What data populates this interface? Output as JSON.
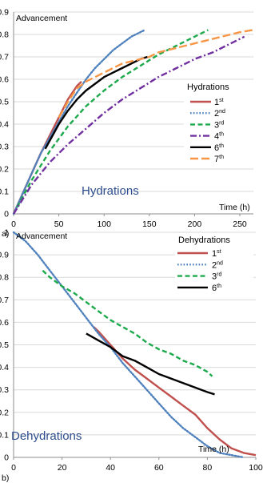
{
  "chart_data": [
    {
      "panel_label": "a)",
      "type": "line",
      "ylabel": "Advancement",
      "xlabel": "Time (h)",
      "annotation": "Hydrations",
      "legend_title": "Hydrations",
      "legend_position": "right",
      "xlim": [
        0,
        265
      ],
      "ylim": [
        0,
        0.9
      ],
      "x_ticks": [
        "0",
        "50",
        "100",
        "150",
        "200",
        "250"
      ],
      "y_ticks": [
        "0",
        "0.1",
        "0.2",
        "0.3",
        "0.4",
        "0.5",
        "0.6",
        "0.7",
        "0.8",
        "0.9"
      ],
      "grid": "horizontal",
      "series": [
        {
          "name": "1",
          "sup": "st",
          "color": "#c0504d",
          "dash": "solid",
          "x": [
            0,
            10,
            20,
            30,
            40,
            50,
            60,
            70,
            75
          ],
          "y": [
            0,
            0.09,
            0.18,
            0.27,
            0.35,
            0.43,
            0.51,
            0.57,
            0.59
          ]
        },
        {
          "name": "2",
          "sup": "nd",
          "color": "#4f81bd",
          "dash": "dot",
          "x": [
            0,
            10,
            20,
            30,
            40,
            50,
            60,
            70,
            80,
            90,
            100,
            110,
            120,
            130,
            140,
            145
          ],
          "y": [
            0,
            0.09,
            0.18,
            0.27,
            0.34,
            0.41,
            0.48,
            0.54,
            0.6,
            0.65,
            0.69,
            0.73,
            0.76,
            0.79,
            0.81,
            0.82
          ]
        },
        {
          "name": "3",
          "sup": "rd",
          "color": "#1daa4c",
          "dash": "dash",
          "x": [
            0,
            20,
            40,
            60,
            80,
            100,
            120,
            140,
            160,
            180,
            200,
            215
          ],
          "y": [
            0,
            0.15,
            0.28,
            0.39,
            0.48,
            0.55,
            0.61,
            0.66,
            0.71,
            0.75,
            0.79,
            0.82
          ]
        },
        {
          "name": "4",
          "sup": "th",
          "color": "#7030a0",
          "dash": "dashdot",
          "x": [
            0,
            20,
            40,
            60,
            80,
            100,
            120,
            140,
            160,
            180,
            200,
            220,
            240,
            255
          ],
          "y": [
            0,
            0.13,
            0.23,
            0.31,
            0.38,
            0.45,
            0.51,
            0.56,
            0.61,
            0.65,
            0.69,
            0.72,
            0.76,
            0.79
          ]
        },
        {
          "name": "6",
          "sup": "th",
          "color": "#000000",
          "dash": "solid",
          "x": [
            35,
            50,
            60,
            70,
            80,
            90,
            100,
            110,
            120,
            130,
            140,
            148
          ],
          "y": [
            0.29,
            0.4,
            0.46,
            0.51,
            0.55,
            0.58,
            0.61,
            0.63,
            0.65,
            0.67,
            0.69,
            0.7
          ]
        },
        {
          "name": "7",
          "sup": "th",
          "color": "#f79646",
          "dash": "longdash",
          "x": [
            50,
            60,
            70,
            80,
            90,
            100,
            110,
            120,
            130,
            140,
            150,
            160,
            170,
            180,
            190,
            200,
            210,
            220,
            230,
            240,
            250,
            265
          ],
          "y": [
            0.43,
            0.5,
            0.56,
            0.59,
            0.61,
            0.63,
            0.65,
            0.67,
            0.68,
            0.69,
            0.7,
            0.72,
            0.73,
            0.74,
            0.75,
            0.76,
            0.77,
            0.78,
            0.79,
            0.8,
            0.81,
            0.82
          ]
        }
      ]
    },
    {
      "panel_label": "b)",
      "type": "line",
      "ylabel": "Advancement",
      "xlabel": "Time (h)",
      "annotation": "Dehydrations",
      "legend_title": "Dehydrations",
      "legend_position": "top-right",
      "xlim": [
        0,
        100
      ],
      "ylim": [
        0,
        1
      ],
      "x_ticks": [
        "0",
        "20",
        "40",
        "60",
        "80",
        "100"
      ],
      "y_ticks": [
        "0",
        "0.1",
        "0.2",
        "0.3",
        "0.4",
        "0.5",
        "0.6",
        "0.7",
        "0.8",
        "0.9",
        "1"
      ],
      "grid": "horizontal",
      "series": [
        {
          "name": "1",
          "sup": "st",
          "color": "#c0504d",
          "dash": "solid",
          "x": [
            33,
            35,
            40,
            45,
            50,
            55,
            60,
            65,
            70,
            75,
            80,
            85,
            90,
            95,
            100
          ],
          "y": [
            0.58,
            0.56,
            0.5,
            0.44,
            0.39,
            0.35,
            0.31,
            0.27,
            0.23,
            0.19,
            0.13,
            0.08,
            0.04,
            0.02,
            0.01
          ]
        },
        {
          "name": "2",
          "sup": "nd",
          "color": "#4f81bd",
          "dash": "dot",
          "x": [
            0,
            5,
            10,
            15,
            20,
            25,
            30,
            35,
            40,
            45,
            50,
            55,
            60,
            65,
            70,
            75,
            80,
            85,
            90,
            95
          ],
          "y": [
            1.0,
            0.96,
            0.9,
            0.83,
            0.76,
            0.69,
            0.62,
            0.55,
            0.49,
            0.42,
            0.36,
            0.3,
            0.24,
            0.18,
            0.13,
            0.09,
            0.05,
            0.02,
            0.01,
            0.0
          ]
        },
        {
          "name": "3",
          "sup": "rd",
          "color": "#1daa4c",
          "dash": "dash",
          "x": [
            12,
            15,
            20,
            25,
            30,
            35,
            40,
            45,
            50,
            55,
            60,
            65,
            70,
            75,
            80,
            82
          ],
          "y": [
            0.83,
            0.8,
            0.76,
            0.73,
            0.69,
            0.65,
            0.61,
            0.58,
            0.55,
            0.51,
            0.48,
            0.46,
            0.43,
            0.41,
            0.38,
            0.36
          ]
        },
        {
          "name": "6",
          "sup": "th",
          "color": "#000000",
          "dash": "solid",
          "x": [
            30,
            35,
            40,
            45,
            50,
            55,
            60,
            65,
            70,
            75,
            80,
            83
          ],
          "y": [
            0.55,
            0.52,
            0.49,
            0.45,
            0.43,
            0.4,
            0.37,
            0.35,
            0.33,
            0.31,
            0.29,
            0.28
          ]
        }
      ]
    }
  ]
}
